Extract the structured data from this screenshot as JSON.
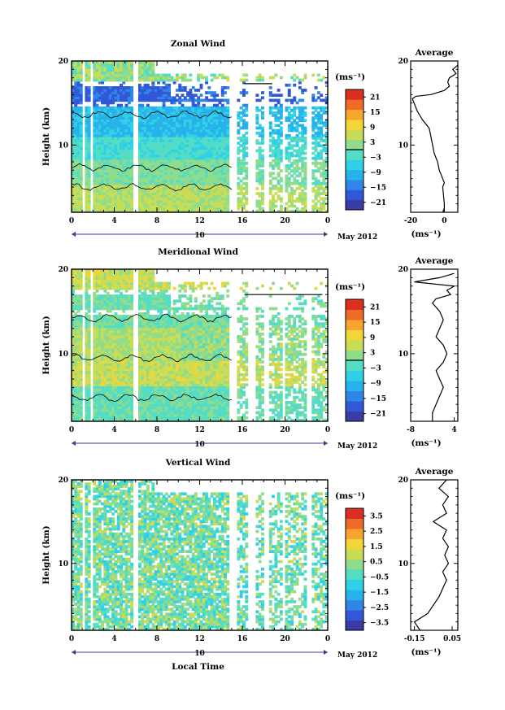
{
  "figure": {
    "x_label": "Local Time",
    "date_label": "May 2012",
    "x_ticks": [
      "0",
      "4",
      "8",
      "12",
      "16",
      "20",
      "0"
    ],
    "day_marker": "10",
    "height_label": "Height (km)",
    "height_ticks": [
      "20",
      "10"
    ],
    "unit_label": "(ms⁻¹)",
    "average_title": "Average",
    "average_unit": "(ms⁻¹)"
  },
  "chart_data": [
    {
      "type": "heatmap",
      "title": "Zonal Wind",
      "xlabel": "",
      "ylabel": "Height (km)",
      "x_ticks": [
        "0",
        "4",
        "8",
        "12",
        "16",
        "20",
        "0"
      ],
      "xlim_hours": [
        0,
        24
      ],
      "ylim_km": [
        2,
        20
      ],
      "colorbar": {
        "label": "(ms⁻¹)",
        "ticks": [
          21,
          15,
          9,
          3,
          -3,
          -9,
          -15,
          -21
        ],
        "range": [
          -24,
          24
        ],
        "zero_contour": true
      },
      "average_profile": {
        "title": "Average",
        "xlabel": "(ms⁻¹)",
        "x_ticks": [
          "-20",
          "0"
        ],
        "xlim": [
          -20,
          8
        ],
        "y_ticks": [
          "20",
          "10"
        ],
        "points": [
          [
            -1,
            2
          ],
          [
            0,
            2.5
          ],
          [
            0,
            3
          ],
          [
            -0.5,
            4
          ],
          [
            -1,
            5
          ],
          [
            0,
            5.5
          ],
          [
            -1,
            6
          ],
          [
            -3,
            7
          ],
          [
            -4,
            8
          ],
          [
            -6,
            9
          ],
          [
            -7,
            10
          ],
          [
            -8,
            11
          ],
          [
            -9,
            12
          ],
          [
            -13,
            13
          ],
          [
            -16,
            14
          ],
          [
            -19,
            15.5
          ],
          [
            -17,
            15.8
          ],
          [
            -8,
            16
          ],
          [
            0,
            16.5
          ],
          [
            3,
            17
          ],
          [
            2,
            17.5
          ],
          [
            3,
            18
          ],
          [
            7,
            18.5
          ],
          [
            5,
            19
          ],
          [
            8,
            19.5
          ]
        ]
      }
    },
    {
      "type": "heatmap",
      "title": "Meridional Wind",
      "xlabel": "",
      "ylabel": "Height (km)",
      "x_ticks": [
        "0",
        "4",
        "8",
        "12",
        "16",
        "20",
        "0"
      ],
      "xlim_hours": [
        0,
        24
      ],
      "ylim_km": [
        2,
        20
      ],
      "colorbar": {
        "label": "(ms⁻¹)",
        "ticks": [
          21,
          15,
          9,
          3,
          -3,
          -9,
          -15,
          -21
        ],
        "range": [
          -24,
          24
        ],
        "zero_contour": true
      },
      "average_profile": {
        "title": "Average",
        "xlabel": "(ms⁻¹)",
        "x_ticks": [
          "-8",
          "4"
        ],
        "xlim": [
          -8,
          5
        ],
        "y_ticks": [
          "20",
          "10"
        ],
        "points": [
          [
            -2,
            2
          ],
          [
            -2,
            3
          ],
          [
            -1,
            4
          ],
          [
            0,
            5
          ],
          [
            1,
            6
          ],
          [
            0,
            7
          ],
          [
            -1,
            8
          ],
          [
            1,
            9
          ],
          [
            2,
            10
          ],
          [
            1,
            11
          ],
          [
            -1,
            12
          ],
          [
            0,
            13
          ],
          [
            1,
            14
          ],
          [
            0,
            15
          ],
          [
            -2,
            16
          ],
          [
            -1,
            16.5
          ],
          [
            3,
            17
          ],
          [
            2,
            17.5
          ],
          [
            4,
            18
          ],
          [
            -7,
            18.5
          ],
          [
            0,
            19
          ],
          [
            4,
            19.5
          ]
        ]
      }
    },
    {
      "type": "heatmap",
      "title": "Vertical Wind",
      "xlabel": "Local Time",
      "ylabel": "Height (km)",
      "x_ticks": [
        "0",
        "4",
        "8",
        "12",
        "16",
        "20",
        "0"
      ],
      "xlim_hours": [
        0,
        24
      ],
      "ylim_km": [
        2,
        20
      ],
      "colorbar": {
        "label": "(ms⁻¹)",
        "ticks": [
          3.5,
          2.5,
          1.5,
          0.5,
          -0.5,
          -1.5,
          -2.5,
          -3.5
        ],
        "range": [
          -4,
          4
        ],
        "zero_contour": false
      },
      "average_profile": {
        "title": "Average",
        "xlabel": "(ms⁻¹)",
        "x_ticks": [
          "-0.15",
          "0.05"
        ],
        "xlim": [
          -0.17,
          0.08
        ],
        "y_ticks": [
          "20",
          "10"
        ],
        "points": [
          [
            -0.12,
            2
          ],
          [
            -0.15,
            3
          ],
          [
            -0.08,
            4
          ],
          [
            -0.05,
            5
          ],
          [
            -0.02,
            6
          ],
          [
            0,
            7
          ],
          [
            0.02,
            8
          ],
          [
            0,
            9
          ],
          [
            0.03,
            10
          ],
          [
            0.01,
            11
          ],
          [
            0.03,
            12
          ],
          [
            0,
            13
          ],
          [
            0.02,
            14
          ],
          [
            -0.05,
            15
          ],
          [
            0.02,
            16
          ],
          [
            0,
            17
          ],
          [
            0.03,
            18
          ],
          [
            -0.02,
            19
          ],
          [
            0.02,
            20
          ]
        ]
      }
    }
  ]
}
